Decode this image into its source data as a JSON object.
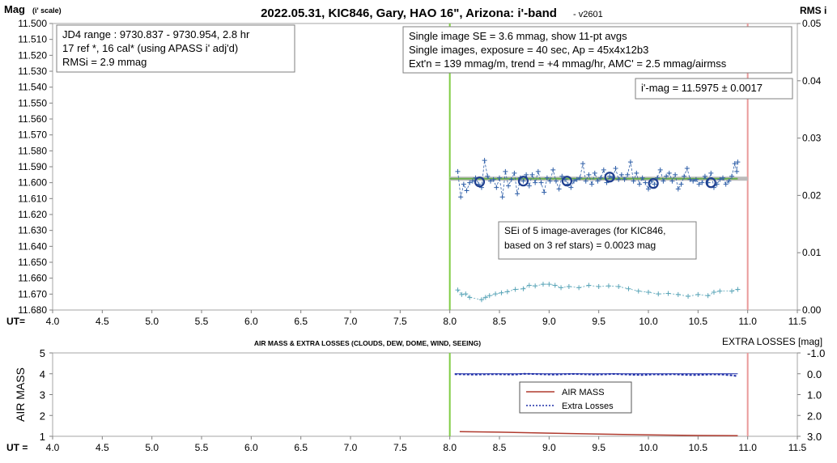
{
  "chart_data": [
    {
      "type": "scatter",
      "title": "2022.05.31, KIC846, Gary, HAO 16\", Arizona: i'-band",
      "title_suffix": "- v2601",
      "ylabel_main": "Mag",
      "ylabel_sub": "(i' scale)",
      "ylabel_right": "RMS i",
      "xlabel": "UT=",
      "xlim": [
        4.0,
        11.5
      ],
      "xticks": [
        "4.0",
        "4.5",
        "5.0",
        "5.5",
        "6.0",
        "6.5",
        "7.0",
        "7.5",
        "8.0",
        "8.5",
        "9.0",
        "9.5",
        "10.0",
        "10.5",
        "11.0",
        "11.5"
      ],
      "ylim": [
        11.5,
        11.68
      ],
      "yticks": [
        "11.500",
        "11.510",
        "11.520",
        "11.530",
        "11.540",
        "11.550",
        "11.560",
        "11.570",
        "11.580",
        "11.590",
        "11.600",
        "11.610",
        "11.620",
        "11.630",
        "11.640",
        "11.650",
        "11.660",
        "11.670",
        "11.680"
      ],
      "y2lim": [
        0.0,
        0.05
      ],
      "y2ticks": [
        "0.00",
        "0.01",
        "0.02",
        "0.03",
        "0.04",
        "0.05"
      ],
      "info_box_left": [
        "JD4 range : 9730.837 - 9730.954, 2.8  hr",
        "17 ref *, 16 cal* (using APASS i' adj'd)",
        "RMSi = 2.9 mmag"
      ],
      "info_box_right": [
        "Single image SE = 3.6 mmag, show 11-pt avgs",
        "Single images, exposure = 40 sec, Ap = 45x4x12b3",
        "Ext'n = 139 mmag/m, trend = +4 mmag/hr, AMC' = 2.5 mmag/airmss"
      ],
      "mag_label": "i'-mag = 11.5975 ± 0.0017",
      "sei_box": [
        "SEi of 5 image-averages (for KIC846,",
        "based on 3 ref stars) = 0.0023 mag"
      ],
      "ingress_x": 8.0,
      "egress_x": 11.0,
      "mean_mag": 11.5975,
      "mean_line_range": [
        8.0,
        11.0
      ],
      "series": [
        {
          "name": "single images",
          "color": "#2f5fa8",
          "points": [
            [
              8.08,
              11.593
            ],
            [
              8.11,
              11.609
            ],
            [
              8.14,
              11.601
            ],
            [
              8.17,
              11.605
            ],
            [
              8.2,
              11.6
            ],
            [
              8.23,
              11.599
            ],
            [
              8.26,
              11.597
            ],
            [
              8.29,
              11.601
            ],
            [
              8.32,
              11.603
            ],
            [
              8.35,
              11.586
            ],
            [
              8.38,
              11.596
            ],
            [
              8.41,
              11.599
            ],
            [
              8.44,
              11.598
            ],
            [
              8.47,
              11.603
            ],
            [
              8.5,
              11.597
            ],
            [
              8.53,
              11.609
            ],
            [
              8.56,
              11.593
            ],
            [
              8.59,
              11.602
            ],
            [
              8.62,
              11.598
            ],
            [
              8.65,
              11.594
            ],
            [
              8.68,
              11.607
            ],
            [
              8.71,
              11.597
            ],
            [
              8.74,
              11.599
            ],
            [
              8.77,
              11.595
            ],
            [
              8.8,
              11.602
            ],
            [
              8.83,
              11.595
            ],
            [
              8.86,
              11.6
            ],
            [
              8.89,
              11.593
            ],
            [
              8.92,
              11.6
            ],
            [
              8.95,
              11.606
            ],
            [
              8.98,
              11.597
            ],
            [
              9.01,
              11.599
            ],
            [
              9.04,
              11.592
            ],
            [
              9.07,
              11.599
            ],
            [
              9.1,
              11.604
            ],
            [
              9.13,
              11.596
            ],
            [
              9.16,
              11.598
            ],
            [
              9.19,
              11.601
            ],
            [
              9.22,
              11.603
            ],
            [
              9.25,
              11.599
            ],
            [
              9.28,
              11.598
            ],
            [
              9.31,
              11.597
            ],
            [
              9.34,
              11.588
            ],
            [
              9.37,
              11.599
            ],
            [
              9.4,
              11.595
            ],
            [
              9.43,
              11.601
            ],
            [
              9.46,
              11.594
            ],
            [
              9.49,
              11.599
            ],
            [
              9.52,
              11.597
            ],
            [
              9.55,
              11.592
            ],
            [
              9.58,
              11.6
            ],
            [
              9.61,
              11.596
            ],
            [
              9.64,
              11.597
            ],
            [
              9.67,
              11.591
            ],
            [
              9.7,
              11.598
            ],
            [
              9.73,
              11.595
            ],
            [
              9.76,
              11.598
            ],
            [
              9.79,
              11.595
            ],
            [
              9.82,
              11.587
            ],
            [
              9.85,
              11.599
            ],
            [
              9.88,
              11.594
            ],
            [
              9.91,
              11.601
            ],
            [
              9.94,
              11.597
            ],
            [
              9.97,
              11.6
            ],
            [
              10.0,
              11.604
            ],
            [
              10.03,
              11.599
            ],
            [
              10.06,
              11.601
            ],
            [
              10.09,
              11.597
            ],
            [
              10.12,
              11.592
            ],
            [
              10.15,
              11.599
            ],
            [
              10.18,
              11.596
            ],
            [
              10.21,
              11.594
            ],
            [
              10.24,
              11.599
            ],
            [
              10.27,
              11.595
            ],
            [
              10.3,
              11.604
            ],
            [
              10.33,
              11.601
            ],
            [
              10.36,
              11.596
            ],
            [
              10.39,
              11.591
            ],
            [
              10.42,
              11.598
            ],
            [
              10.45,
              11.599
            ],
            [
              10.48,
              11.598
            ],
            [
              10.51,
              11.601
            ],
            [
              10.54,
              11.6
            ],
            [
              10.57,
              11.596
            ],
            [
              10.6,
              11.6
            ],
            [
              10.63,
              11.594
            ],
            [
              10.66,
              11.603
            ],
            [
              10.69,
              11.601
            ],
            [
              10.72,
              11.598
            ],
            [
              10.75,
              11.597
            ],
            [
              10.78,
              11.601
            ],
            [
              10.81,
              11.599
            ],
            [
              10.84,
              11.596
            ],
            [
              10.87,
              11.588
            ],
            [
              10.89,
              11.593
            ],
            [
              10.9,
              11.587
            ]
          ]
        },
        {
          "name": "11-pt avgs",
          "color": "#1f3f8f",
          "points": [
            [
              8.3,
              11.5995
            ],
            [
              8.74,
              11.599
            ],
            [
              9.18,
              11.599
            ],
            [
              9.61,
              11.5965
            ],
            [
              10.05,
              11.6005
            ],
            [
              10.63,
              11.6
            ]
          ]
        },
        {
          "name": "RMS i",
          "color": "#5aa5b8",
          "axis": "right",
          "points": [
            [
              8.08,
              0.0035
            ],
            [
              8.12,
              0.0027
            ],
            [
              8.16,
              0.0028
            ],
            [
              8.2,
              0.0022
            ],
            [
              8.32,
              0.0018
            ],
            [
              8.36,
              0.0022
            ],
            [
              8.4,
              0.0025
            ],
            [
              8.46,
              0.0028
            ],
            [
              8.52,
              0.003
            ],
            [
              8.58,
              0.0032
            ],
            [
              8.66,
              0.0036
            ],
            [
              8.74,
              0.0037
            ],
            [
              8.8,
              0.0043
            ],
            [
              8.86,
              0.0042
            ],
            [
              8.94,
              0.0045
            ],
            [
              9.0,
              0.0045
            ],
            [
              9.06,
              0.0043
            ],
            [
              9.12,
              0.0039
            ],
            [
              9.2,
              0.0041
            ],
            [
              9.3,
              0.0039
            ],
            [
              9.4,
              0.0043
            ],
            [
              9.5,
              0.0041
            ],
            [
              9.6,
              0.0042
            ],
            [
              9.7,
              0.0041
            ],
            [
              9.8,
              0.0037
            ],
            [
              9.9,
              0.0033
            ],
            [
              10.0,
              0.0031
            ],
            [
              10.1,
              0.0028
            ],
            [
              10.2,
              0.0029
            ],
            [
              10.3,
              0.0027
            ],
            [
              10.4,
              0.0024
            ],
            [
              10.5,
              0.0027
            ],
            [
              10.6,
              0.0025
            ],
            [
              10.66,
              0.0031
            ],
            [
              10.72,
              0.0033
            ],
            [
              10.84,
              0.0033
            ],
            [
              10.9,
              0.0036
            ]
          ]
        }
      ]
    },
    {
      "type": "line",
      "title": "AIR MASS & EXTRA LOSSES (CLOUDS, DEW, DOME, WIND, SEEING)",
      "ylabel": "AIR MASS",
      "ylabel_right": "EXTRA LOSSES [mag]",
      "xlabel": "UT =",
      "xlim": [
        4.0,
        11.5
      ],
      "xticks": [
        "4.0",
        "4.5",
        "5.0",
        "5.5",
        "6.0",
        "6.5",
        "7.0",
        "7.5",
        "8.0",
        "8.5",
        "9.0",
        "9.5",
        "10.0",
        "10.5",
        "11.0",
        "11.5"
      ],
      "ylim": [
        1,
        5
      ],
      "yticks": [
        "1",
        "2",
        "3",
        "4",
        "5"
      ],
      "y2lim": [
        3.0,
        -1.0
      ],
      "y2ticks": [
        "-1.0",
        "0.0",
        "1.0",
        "2.0",
        "3.0"
      ],
      "ingress_x": 8.0,
      "egress_x": 11.0,
      "legend": [
        "AIR MASS",
        "Extra Losses"
      ],
      "legend_position": "center",
      "series": [
        {
          "name": "AIR MASS",
          "color": "#b03a2e",
          "points": [
            [
              8.1,
              1.22
            ],
            [
              8.5,
              1.2
            ],
            [
              9.0,
              1.15
            ],
            [
              9.5,
              1.11
            ],
            [
              10.0,
              1.07
            ],
            [
              10.5,
              1.04
            ],
            [
              10.9,
              1.03
            ]
          ]
        },
        {
          "name": "Extra Losses",
          "color": "#1f2fa8",
          "axis": "right",
          "points": [
            [
              8.05,
              0.02
            ],
            [
              8.15,
              0.03
            ],
            [
              8.25,
              0.04
            ],
            [
              8.35,
              0.03
            ],
            [
              8.45,
              0.02
            ],
            [
              8.55,
              0.03
            ],
            [
              8.65,
              0.04
            ],
            [
              8.75,
              0.0
            ],
            [
              8.85,
              0.01
            ],
            [
              8.95,
              0.03
            ],
            [
              9.05,
              0.04
            ],
            [
              9.15,
              0.02
            ],
            [
              9.25,
              0.01
            ],
            [
              9.35,
              0.02
            ],
            [
              9.45,
              0.04
            ],
            [
              9.55,
              0.03
            ],
            [
              9.65,
              0.01
            ],
            [
              9.75,
              0.03
            ],
            [
              9.85,
              0.05
            ],
            [
              9.95,
              0.06
            ],
            [
              10.05,
              0.03
            ],
            [
              10.15,
              0.04
            ],
            [
              10.25,
              0.02
            ],
            [
              10.35,
              0.05
            ],
            [
              10.45,
              0.06
            ],
            [
              10.55,
              0.05
            ],
            [
              10.65,
              0.03
            ],
            [
              10.75,
              0.04
            ],
            [
              10.85,
              0.08
            ],
            [
              10.9,
              0.12
            ]
          ]
        }
      ]
    }
  ]
}
